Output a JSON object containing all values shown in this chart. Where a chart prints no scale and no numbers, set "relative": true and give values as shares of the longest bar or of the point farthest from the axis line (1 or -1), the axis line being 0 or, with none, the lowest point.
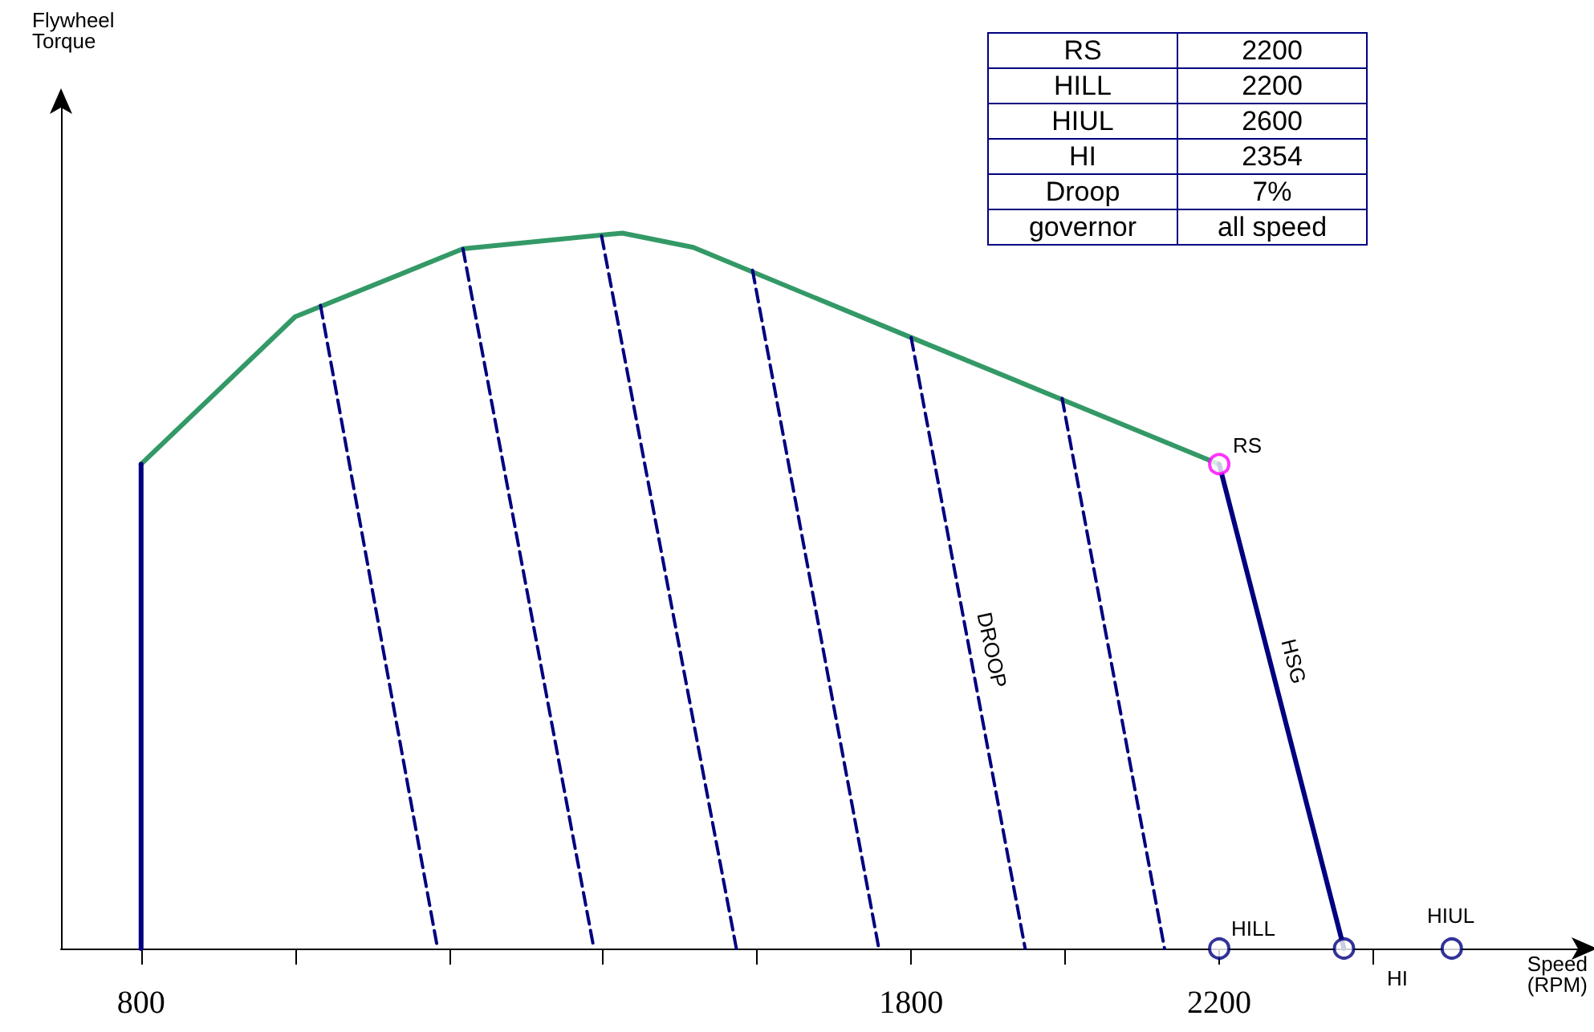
{
  "chart_data": [
    {
      "type": "line",
      "relative": true,
      "xlabel": "Speed\n(RPM)",
      "ylabel": "Flywheel\nTorque",
      "xlim": [
        696,
        2670
      ],
      "xticks": [
        800,
        {
          "value": 1000,
          "label": null
        },
        {
          "value": 1200,
          "label": null
        },
        {
          "value": 1400,
          "label": null
        },
        {
          "value": 1600,
          "label": null
        },
        1800,
        {
          "value": 2000,
          "label": null
        },
        2200,
        {
          "value": 2400,
          "label": null
        }
      ],
      "grid": false,
      "series": [
        {
          "color": "#339966",
          "marker": "none",
          "line_style": "solid",
          "x": [
            800,
            1000,
            1218,
            1425,
            1517,
            1800,
            2200
          ],
          "values": [
            0.677,
            0.883,
            0.978,
            1.0,
            0.98,
            0.854,
            0.677
          ]
        },
        {
          "color": "#000080",
          "marker": "none",
          "line_style": "solid",
          "x": [
            800,
            800
          ],
          "values": [
            0,
            0.677
          ]
        },
        {
          "color": "#000080",
          "marker": "none",
          "line_style": "solid",
          "x": [
            2200,
            2362
          ],
          "values": [
            0.677,
            0
          ]
        },
        {
          "color": "#000080",
          "marker": "none",
          "line_style": "dashed",
          "x": [
            1033,
            1185
          ],
          "values": [
            0.899,
            0
          ]
        },
        {
          "color": "#000080",
          "marker": "none",
          "line_style": "dashed",
          "x": [
            1218,
            1388
          ],
          "values": [
            0.978,
            0
          ]
        },
        {
          "color": "#000080",
          "marker": "none",
          "line_style": "dashed",
          "x": [
            1398,
            1573
          ],
          "values": [
            0.996,
            0
          ]
        },
        {
          "color": "#000080",
          "marker": "none",
          "line_style": "dashed",
          "x": [
            1594,
            1758
          ],
          "values": [
            0.948,
            0
          ]
        },
        {
          "color": "#000080",
          "marker": "none",
          "line_style": "dashed",
          "x": [
            1800,
            1948
          ],
          "values": [
            0.854,
            0
          ]
        },
        {
          "color": "#000080",
          "marker": "none",
          "line_style": "dashed",
          "x": [
            1996,
            2129
          ],
          "values": [
            0.769,
            0
          ]
        },
        {
          "type": "scatter",
          "color": "#ff00ff",
          "marker": "circle",
          "x": [
            2200
          ],
          "values": [
            0.677
          ]
        },
        {
          "type": "scatter",
          "color": "#000080",
          "marker": "circle",
          "x": [
            2200,
            2362,
            2502
          ],
          "values": [
            0,
            0,
            0
          ]
        }
      ],
      "annotations": [
        "RS",
        "HILL",
        "HIUL",
        "HI",
        "DROOP",
        "HSG"
      ]
    },
    {
      "type": "other",
      "categories": [
        "RS",
        "HILL",
        "HIUL",
        "HI",
        "Droop",
        "governor"
      ],
      "value_labels": [
        "2200",
        "2200",
        "2600",
        "2354",
        "7%",
        "all speed"
      ]
    }
  ]
}
